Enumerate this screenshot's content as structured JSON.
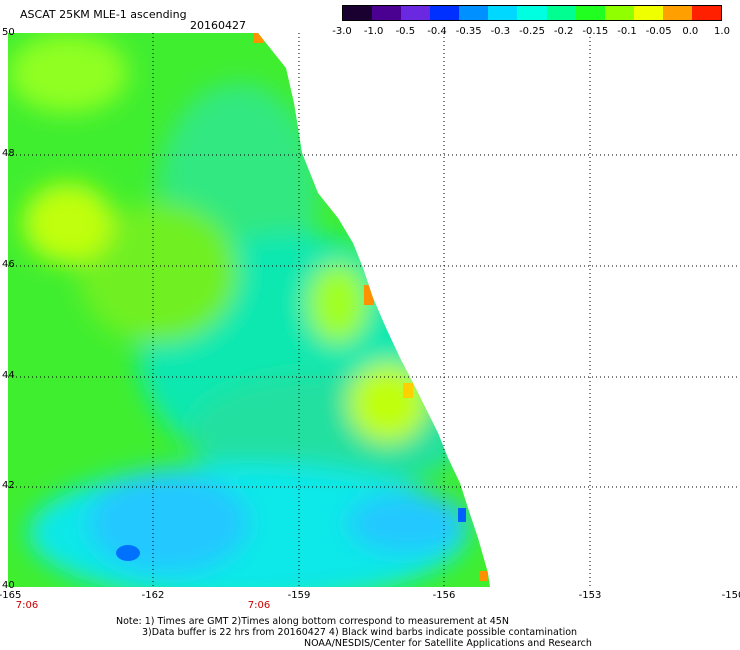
{
  "header": {
    "title": "ASCAT 25KM MLE-1 ascending",
    "date": "20160427"
  },
  "colorbar": {
    "labels": [
      "-3.0",
      "-1.0",
      "-0.5",
      "-0.4",
      "-0.35",
      "-0.3",
      "-0.25",
      "-0.2",
      "-0.15",
      "-0.1",
      "-0.05",
      "0.0",
      "1.0"
    ],
    "colors": [
      "#1a0030",
      "#4a0090",
      "#6a28e0",
      "#0030ff",
      "#0090ff",
      "#00d8ff",
      "#00ffe0",
      "#00ff90",
      "#20ff20",
      "#90ff00",
      "#f0ff00",
      "#ffa000",
      "#ff2000"
    ]
  },
  "axes": {
    "y_labels": [
      "50",
      "48",
      "46",
      "44",
      "42",
      "40"
    ],
    "x_labels": [
      "-165",
      "-162",
      "-159",
      "-156",
      "-153",
      "-150"
    ],
    "time_labels": [
      "7:06",
      "7:06"
    ]
  },
  "notes": {
    "line1": "Note: 1) Times are GMT 2)Times along bottom correspond to measurement at 45N",
    "line2": "3)Data buffer is 22 hrs from 20160427 4) Black wind barbs indicate possible contamination",
    "line3": "NOAA/NESDIS/Center for Satellite Applications and Research"
  },
  "colors": {
    "grid": "#000000",
    "time_label": "#cc0000"
  }
}
